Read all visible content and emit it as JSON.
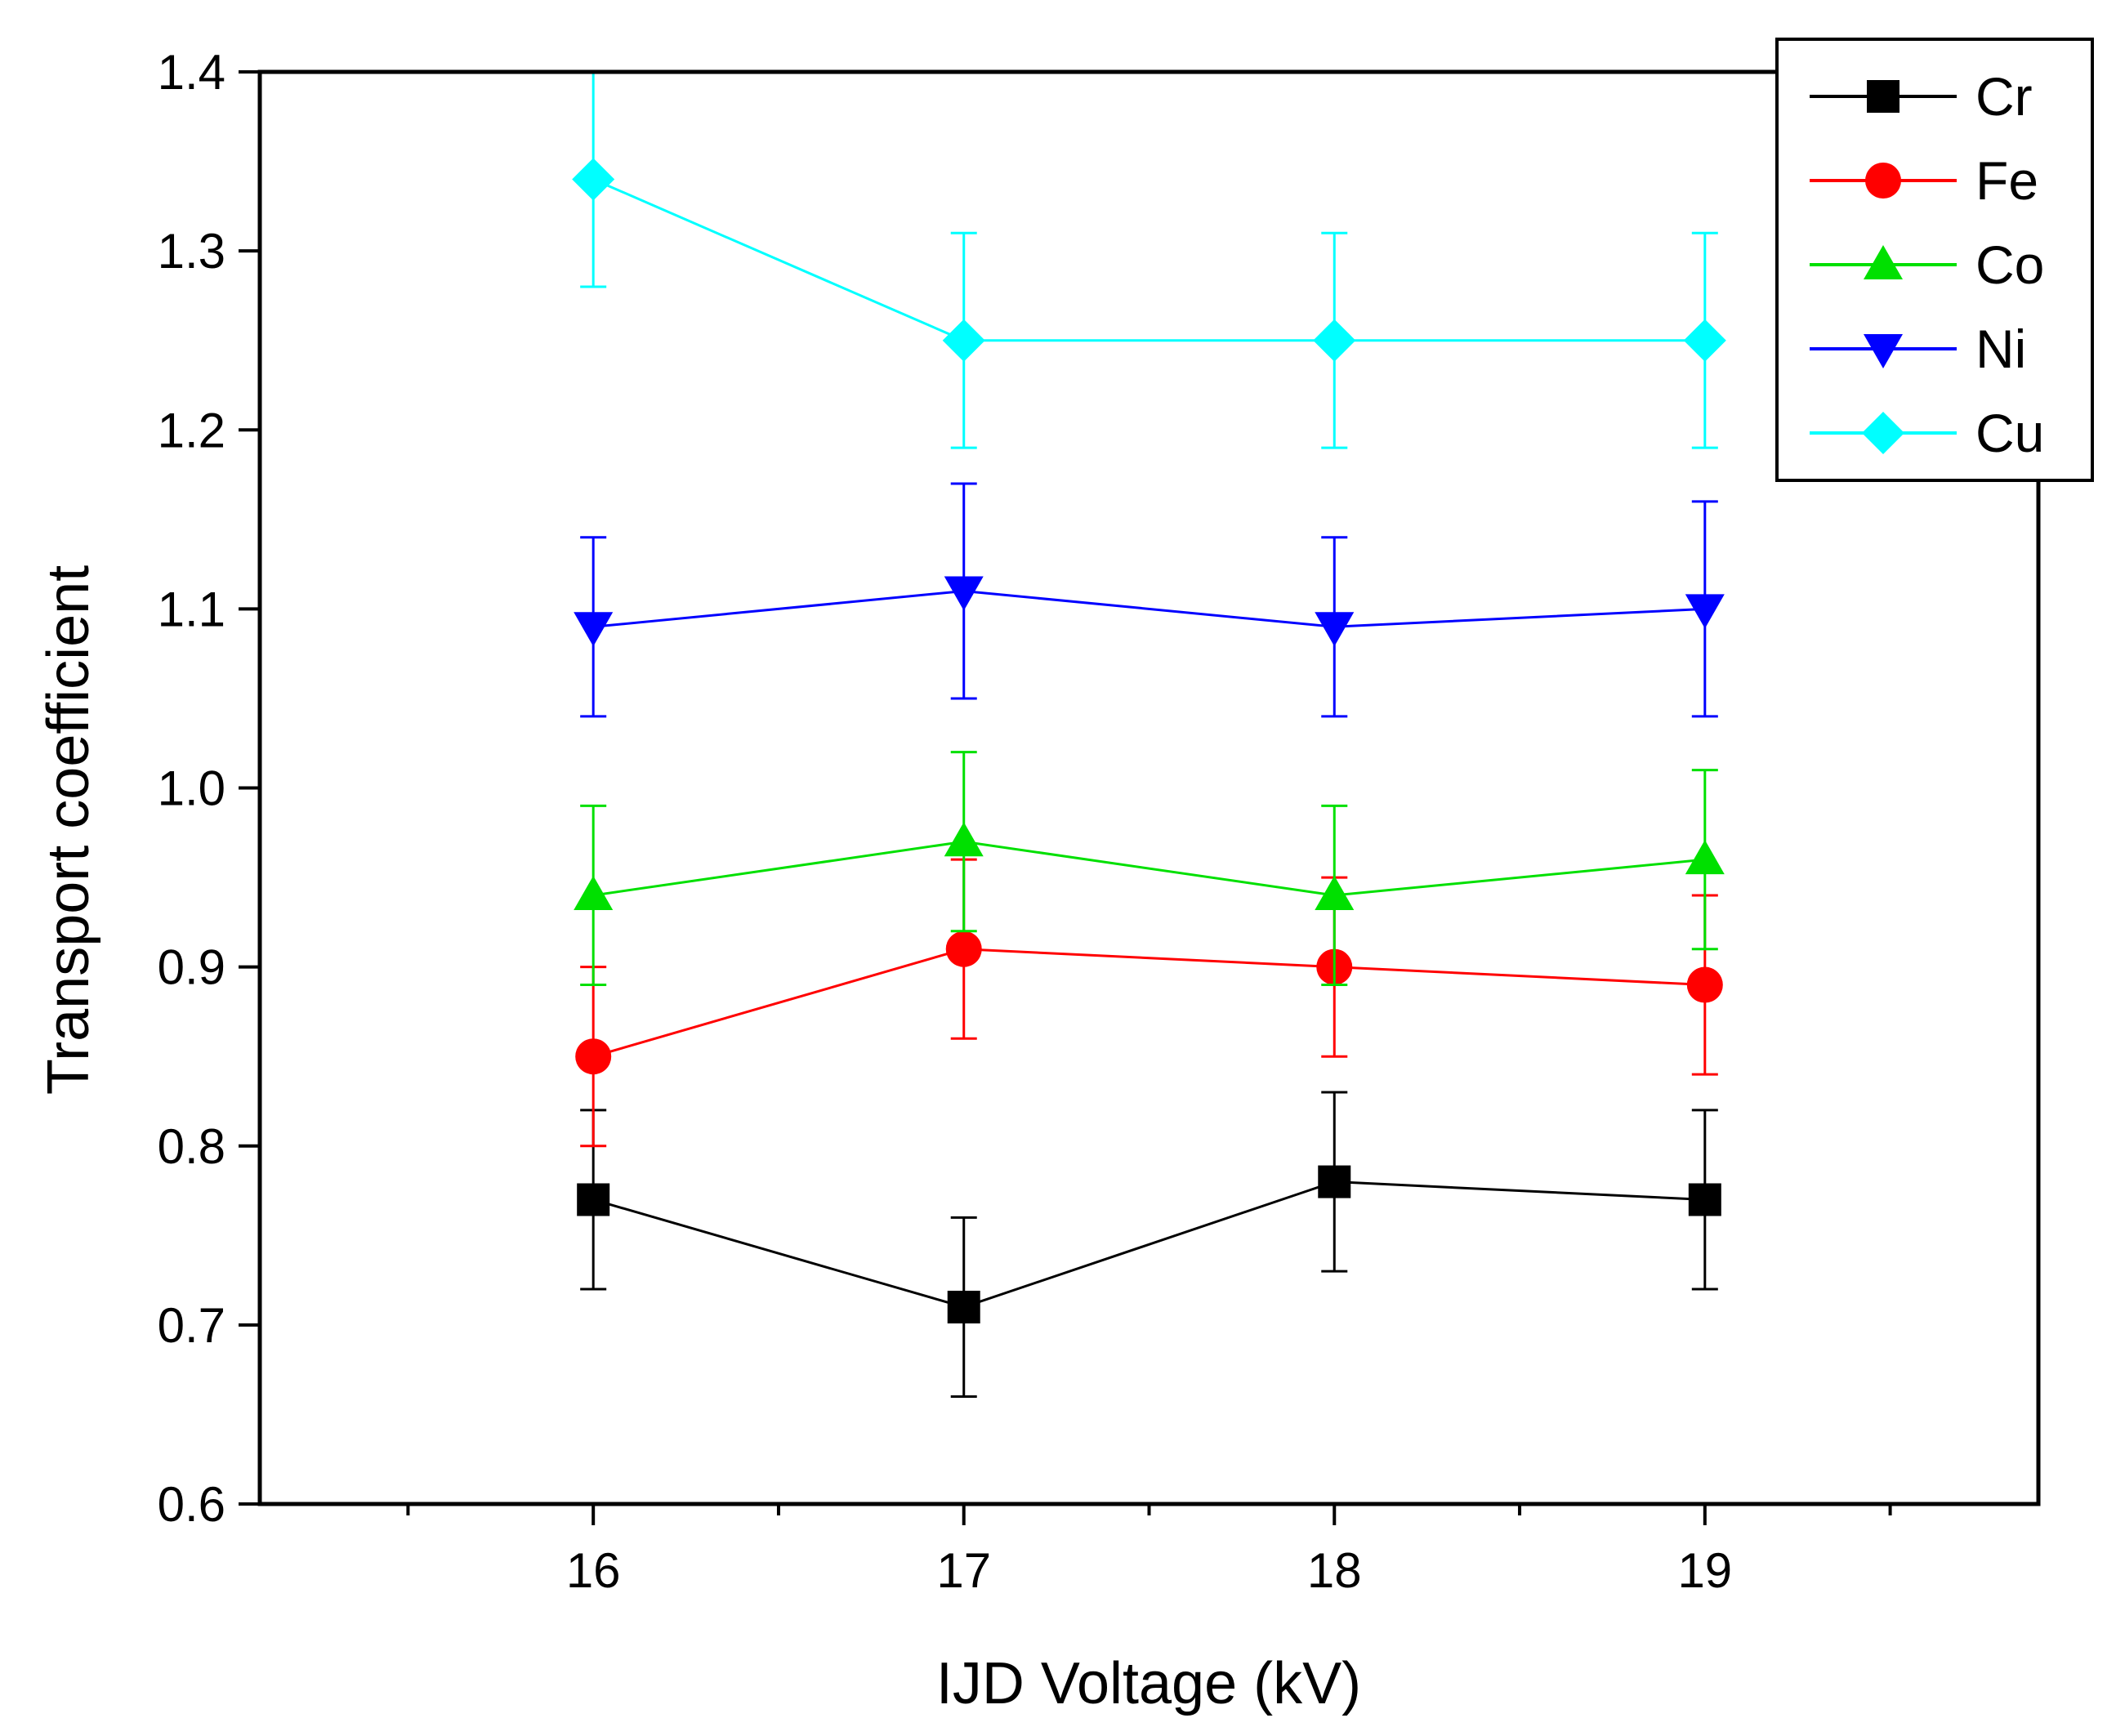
{
  "chart_data": {
    "type": "line",
    "title": "",
    "xlabel": "IJD Voltage (kV)",
    "ylabel": "Transport coefficient",
    "xlim": [
      15.1,
      19.9
    ],
    "ylim": [
      0.6,
      1.4
    ],
    "x": [
      16,
      17,
      18,
      19
    ],
    "x_tick_labels": [
      "16",
      "17",
      "18",
      "19"
    ],
    "x_minor_ticks": [
      15.5,
      16.5,
      17.5,
      18.5,
      19.5
    ],
    "y_ticks": [
      0.6,
      0.7,
      0.8,
      0.9,
      1.0,
      1.1,
      1.2,
      1.3,
      1.4
    ],
    "y_tick_labels": [
      "0.6",
      "0.7",
      "0.8",
      "0.9",
      "1.0",
      "1.1",
      "1.2",
      "1.3",
      "1.4"
    ],
    "grid": false,
    "legend_position": "top-right",
    "series": [
      {
        "name": "Cr",
        "color": "#000000",
        "marker": "square",
        "values": [
          0.77,
          0.71,
          0.78,
          0.77
        ],
        "errors": [
          0.05,
          0.05,
          0.05,
          0.05
        ]
      },
      {
        "name": "Fe",
        "color": "#ff0000",
        "marker": "circle",
        "values": [
          0.85,
          0.91,
          0.9,
          0.89
        ],
        "errors": [
          0.05,
          0.05,
          0.05,
          0.05
        ]
      },
      {
        "name": "Co",
        "color": "#00e000",
        "marker": "triangle-up",
        "values": [
          0.94,
          0.97,
          0.94,
          0.96
        ],
        "errors": [
          0.05,
          0.05,
          0.05,
          0.05
        ]
      },
      {
        "name": "Ni",
        "color": "#0000ff",
        "marker": "triangle-down",
        "values": [
          1.09,
          1.11,
          1.09,
          1.1
        ],
        "errors": [
          0.05,
          0.06,
          0.05,
          0.06
        ]
      },
      {
        "name": "Cu",
        "color": "#00ffff",
        "marker": "diamond",
        "values": [
          1.34,
          1.25,
          1.25,
          1.25
        ],
        "errors": [
          0.06,
          0.06,
          0.06,
          0.06
        ]
      }
    ]
  }
}
